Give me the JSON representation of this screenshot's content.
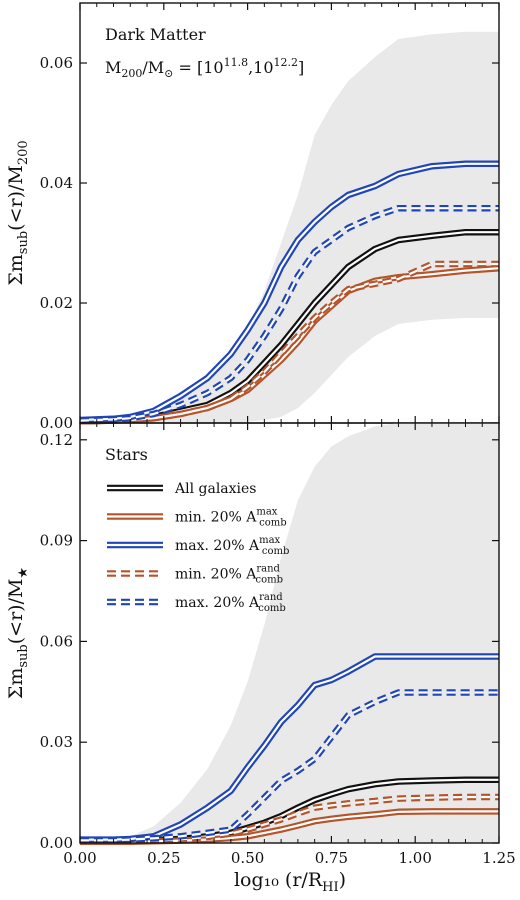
{
  "colors": {
    "all": "#111111",
    "min": "#b5532a",
    "max": "#1f45b8",
    "band": "#e9e9e9"
  },
  "xlabel": "log₁₀ (r/R",
  "xlabel_sub": "HI",
  "xlabel_end": ")",
  "chart_data": [
    {
      "type": "line",
      "panel": "top",
      "annotation": "Dark Matter",
      "ylabel": "Σm",
      "ylabel_sub": "sub",
      "ylabel_mid": "(<r)/M",
      "ylabel_sub2": "200",
      "mass_range": {
        "prefix": "M",
        "prefix_sub": "200",
        "mid": "/M",
        "mid_sub": "⊙",
        "eq": " = [10",
        "exp1": "11.8",
        "sep": ",10",
        "exp2": "12.2",
        "end": "]"
      },
      "xlim": [
        0,
        1.25
      ],
      "ylim": [
        0,
        0.07
      ],
      "xticks": [
        "0.00",
        "0.25",
        "0.50",
        "0.75",
        "1.00",
        "1.25"
      ],
      "yticks": [
        "0.00",
        "0.02",
        "0.04",
        "0.06"
      ],
      "x": [
        0.0,
        0.1,
        0.15,
        0.22,
        0.3,
        0.38,
        0.45,
        0.5,
        0.55,
        0.6,
        0.65,
        0.7,
        0.75,
        0.8,
        0.88,
        0.95,
        1.05,
        1.15,
        1.25
      ],
      "band": {
        "upper": [
          0.0005,
          0.0008,
          0.0012,
          0.002,
          0.004,
          0.007,
          0.011,
          0.016,
          0.022,
          0.03,
          0.038,
          0.048,
          0.053,
          0.057,
          0.061,
          0.064,
          0.0648,
          0.0652,
          0.0652
        ],
        "lower": [
          0.0,
          0.0,
          0.0,
          0.0,
          0.0,
          0.0,
          0.0,
          0.0002,
          0.0005,
          0.001,
          0.0025,
          0.005,
          0.008,
          0.011,
          0.0145,
          0.0165,
          0.0172,
          0.0175,
          0.0175
        ]
      },
      "series": [
        {
          "key": "all",
          "style": "solid",
          "values": [
            0.0003,
            0.0004,
            0.0006,
            0.001,
            0.002,
            0.003,
            0.005,
            0.007,
            0.01,
            0.013,
            0.0165,
            0.02,
            0.023,
            0.026,
            0.029,
            0.0305,
            0.0312,
            0.0318,
            0.0318
          ]
        },
        {
          "key": "min",
          "style": "solid",
          "values": [
            0.0003,
            0.0004,
            0.0005,
            0.0008,
            0.0015,
            0.0025,
            0.004,
            0.0055,
            0.008,
            0.0105,
            0.0135,
            0.017,
            0.0195,
            0.022,
            0.0237,
            0.0243,
            0.0248,
            0.0254,
            0.0258
          ]
        },
        {
          "key": "max",
          "style": "solid",
          "values": [
            0.0005,
            0.0007,
            0.001,
            0.002,
            0.0045,
            0.0075,
            0.0115,
            0.0155,
            0.02,
            0.026,
            0.0305,
            0.0335,
            0.036,
            0.038,
            0.0395,
            0.0415,
            0.0428,
            0.0432,
            0.0432
          ]
        },
        {
          "key": "min_rand",
          "style": "dashed",
          "values": [
            0.0003,
            0.0004,
            0.0005,
            0.0008,
            0.0015,
            0.0025,
            0.004,
            0.006,
            0.0085,
            0.0115,
            0.0145,
            0.0175,
            0.02,
            0.0223,
            0.0232,
            0.024,
            0.0265,
            0.0265,
            0.0265
          ]
        },
        {
          "key": "max_rand",
          "style": "dashed",
          "values": [
            0.0004,
            0.0006,
            0.0008,
            0.0015,
            0.003,
            0.005,
            0.0075,
            0.0105,
            0.0145,
            0.019,
            0.0245,
            0.0285,
            0.0305,
            0.0325,
            0.0345,
            0.0358,
            0.0358,
            0.0358,
            0.0358
          ]
        }
      ]
    },
    {
      "type": "line",
      "panel": "bottom",
      "annotation": "Stars",
      "ylabel": "Σm",
      "ylabel_sub": "sub",
      "ylabel_mid": "(<r)/M",
      "ylabel_sub2": "★",
      "xlim": [
        0,
        1.25
      ],
      "ylim": [
        0,
        0.125
      ],
      "xticks": [
        "0.00",
        "0.25",
        "0.50",
        "0.75",
        "1.00",
        "1.25"
      ],
      "yticks": [
        "0.00",
        "0.03",
        "0.06",
        "0.09",
        "0.12"
      ],
      "legend": {
        "placement": "upper-left",
        "entries": [
          {
            "key": "all",
            "style": "solid",
            "label": "All galaxies",
            "sup": "",
            "sub": ""
          },
          {
            "key": "min",
            "style": "solid",
            "label": "min. 20% A",
            "sup": "max",
            "sub": "comb"
          },
          {
            "key": "max",
            "style": "solid",
            "label": "max. 20% A",
            "sup": "max",
            "sub": "comb"
          },
          {
            "key": "min_rand",
            "style": "dashed",
            "label": "min. 20% A",
            "sup": "rand",
            "sub": "comb"
          },
          {
            "key": "max_rand",
            "style": "dashed",
            "label": "max. 20% A",
            "sup": "rand",
            "sub": "comb"
          }
        ]
      },
      "x": [
        0.0,
        0.1,
        0.15,
        0.22,
        0.3,
        0.38,
        0.45,
        0.5,
        0.55,
        0.6,
        0.65,
        0.7,
        0.75,
        0.8,
        0.88,
        0.95,
        1.05,
        1.15,
        1.25
      ],
      "band": {
        "upper": [
          0.0005,
          0.001,
          0.002,
          0.005,
          0.012,
          0.022,
          0.035,
          0.048,
          0.065,
          0.085,
          0.102,
          0.112,
          0.118,
          0.121,
          0.124,
          0.125,
          0.125,
          0.125,
          0.125
        ],
        "lower": [
          0.0,
          0.0,
          0.0,
          0.0,
          0.0,
          0.0,
          0.0,
          0.0,
          0.0,
          0.0,
          0.0,
          0.0,
          0.0,
          0.0,
          0.0,
          0.0,
          0.0,
          0.0,
          0.0
        ]
      },
      "series": [
        {
          "key": "all",
          "style": "solid",
          "values": [
            0.0005,
            0.0005,
            0.0006,
            0.0008,
            0.0012,
            0.002,
            0.003,
            0.0045,
            0.006,
            0.008,
            0.0105,
            0.0128,
            0.0145,
            0.016,
            0.0175,
            0.0183,
            0.0186,
            0.0188,
            0.0188
          ]
        },
        {
          "key": "min",
          "style": "solid",
          "values": [
            0.0004,
            0.0004,
            0.0004,
            0.0005,
            0.0007,
            0.001,
            0.0015,
            0.002,
            0.003,
            0.004,
            0.0052,
            0.0065,
            0.0072,
            0.0078,
            0.0085,
            0.0093,
            0.0094,
            0.0094,
            0.0094
          ]
        },
        {
          "key": "max",
          "style": "solid",
          "values": [
            0.001,
            0.001,
            0.0012,
            0.002,
            0.0055,
            0.0105,
            0.0155,
            0.0225,
            0.029,
            0.036,
            0.041,
            0.047,
            0.0485,
            0.051,
            0.0555,
            0.0555,
            0.0555,
            0.0555,
            0.0555
          ]
        },
        {
          "key": "min_rand",
          "style": "dashed",
          "values": [
            0.0004,
            0.0004,
            0.0005,
            0.0007,
            0.0011,
            0.0018,
            0.0028,
            0.004,
            0.0055,
            0.007,
            0.0088,
            0.0105,
            0.0112,
            0.0118,
            0.0125,
            0.0132,
            0.0135,
            0.0137,
            0.0137
          ]
        },
        {
          "key": "max_rand",
          "style": "dashed",
          "values": [
            0.0008,
            0.0008,
            0.001,
            0.0014,
            0.002,
            0.003,
            0.004,
            0.0085,
            0.0135,
            0.0185,
            0.0215,
            0.025,
            0.0315,
            0.038,
            0.042,
            0.0448,
            0.0448,
            0.0448,
            0.0448
          ]
        }
      ]
    }
  ]
}
